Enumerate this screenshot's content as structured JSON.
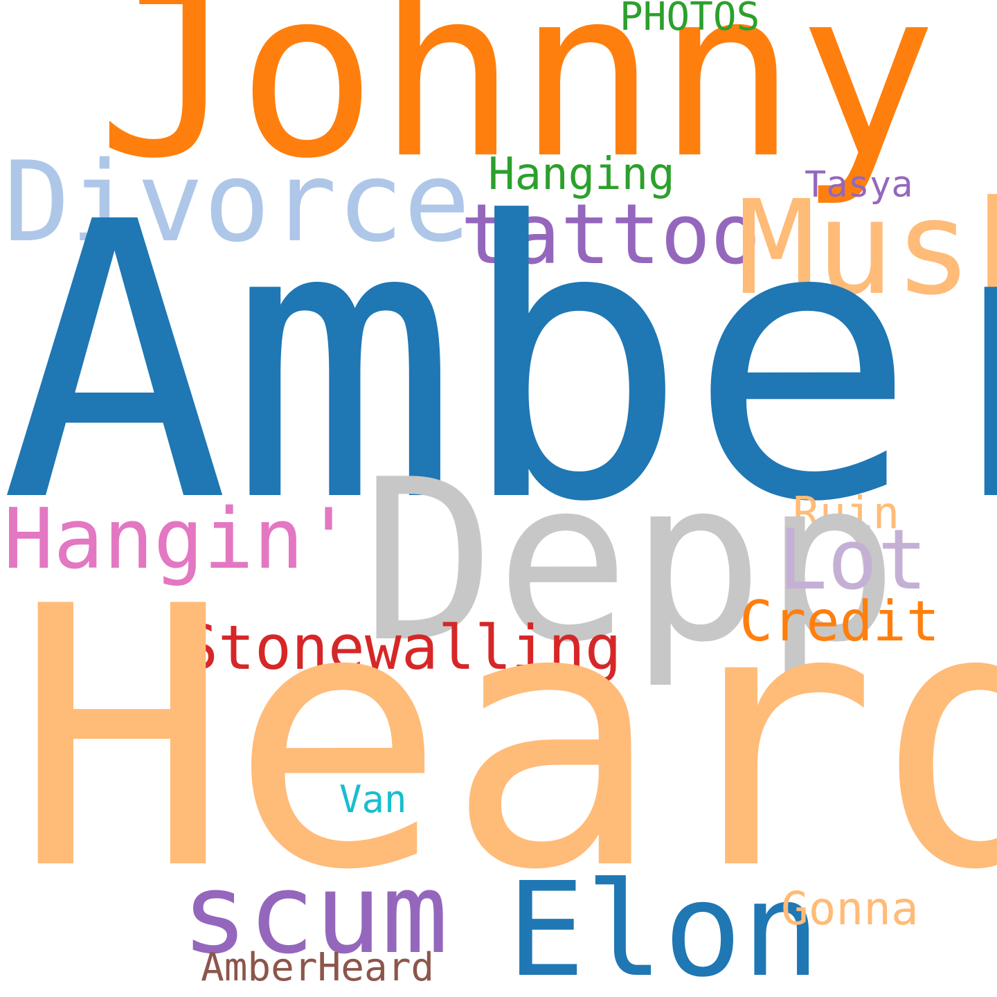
{
  "words": [
    {
      "key": "johnny",
      "text": "Johnny",
      "color": "#ff7f0e"
    },
    {
      "key": "photos",
      "text": "PHOTOS",
      "color": "#2ca02c"
    },
    {
      "key": "divorce",
      "text": "Divorce",
      "color": "#aec7e8"
    },
    {
      "key": "hanging",
      "text": "Hanging",
      "color": "#2ca02c"
    },
    {
      "key": "tasya",
      "text": "Tasya",
      "color": "#9467bd"
    },
    {
      "key": "tattoo",
      "text": "tattoo",
      "color": "#9467bd"
    },
    {
      "key": "musk",
      "text": "Musk",
      "color": "#ffbb78"
    },
    {
      "key": "amber",
      "text": "Amber",
      "color": "#1f77b4"
    },
    {
      "key": "ruin",
      "text": "Ruin",
      "color": "#ffbb78"
    },
    {
      "key": "hangin",
      "text": "Hangin'",
      "color": "#e377c2"
    },
    {
      "key": "depp",
      "text": "Depp",
      "color": "#c7c7c7"
    },
    {
      "key": "lot",
      "text": "Lot",
      "color": "#c5b0d5"
    },
    {
      "key": "credit",
      "text": "Credit",
      "color": "#ff7f0e"
    },
    {
      "key": "stonewalling",
      "text": "Stonewalling",
      "color": "#d62728"
    },
    {
      "key": "heard",
      "text": "Heard",
      "color": "#ffbb78"
    },
    {
      "key": "van",
      "text": "Van",
      "color": "#17becf"
    },
    {
      "key": "scum",
      "text": "scum",
      "color": "#9467bd"
    },
    {
      "key": "elon",
      "text": "Elon",
      "color": "#1f77b4"
    },
    {
      "key": "gonna",
      "text": "Gonna",
      "color": "#ffbb78"
    },
    {
      "key": "amberheard",
      "text": "AmberHeard",
      "color": "#8c564b"
    }
  ]
}
